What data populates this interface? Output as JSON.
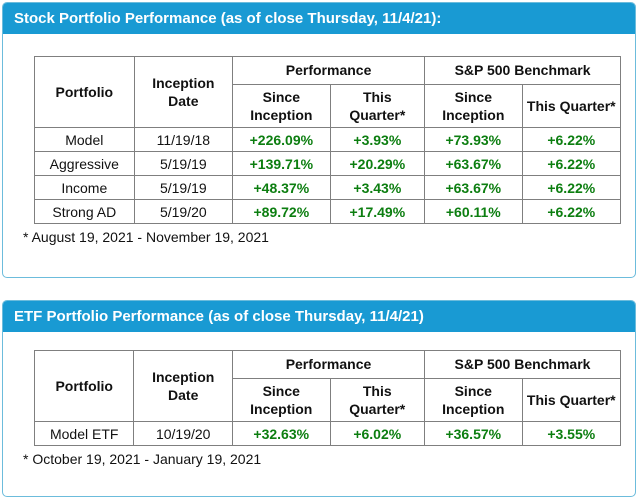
{
  "colors": {
    "header_bg": "#199ad3",
    "header_text": "#ffffff",
    "card_border": "#6cbcdc",
    "table_border": "#7f7f7f",
    "positive_value": "#0c7e10",
    "text": "#111111"
  },
  "sections": [
    {
      "title": "Stock Portfolio Performance (as of close Thursday, 11/4/21):",
      "headers": {
        "portfolio": "Portfolio",
        "inception_date": "Inception Date",
        "performance": "Performance",
        "benchmark": "S&P 500 Benchmark",
        "since_inception": "Since Inception",
        "this_quarter": "This Quarter*"
      },
      "rows": [
        {
          "portfolio": "Model",
          "inception_date": "11/19/18",
          "perf_since_inception": "+226.09%",
          "perf_this_quarter": "+3.93%",
          "bench_since_inception": "+73.93%",
          "bench_this_quarter": "+6.22%"
        },
        {
          "portfolio": "Aggressive",
          "inception_date": "5/19/19",
          "perf_since_inception": "+139.71%",
          "perf_this_quarter": "+20.29%",
          "bench_since_inception": "+63.67%",
          "bench_this_quarter": "+6.22%"
        },
        {
          "portfolio": "Income",
          "inception_date": "5/19/19",
          "perf_since_inception": "+48.37%",
          "perf_this_quarter": "+3.43%",
          "bench_since_inception": "+63.67%",
          "bench_this_quarter": "+6.22%"
        },
        {
          "portfolio": "Strong AD",
          "inception_date": "5/19/20",
          "perf_since_inception": "+89.72%",
          "perf_this_quarter": "+17.49%",
          "bench_since_inception": "+60.11%",
          "bench_this_quarter": "+6.22%"
        }
      ],
      "footnote": "* August 19, 2021 - November 19, 2021"
    },
    {
      "title": "ETF Portfolio Performance (as of close Thursday, 11/4/21)",
      "headers": {
        "portfolio": "Portfolio",
        "inception_date": "Inception Date",
        "performance": "Performance",
        "benchmark": "S&P 500 Benchmark",
        "since_inception": "Since Inception",
        "this_quarter": "This Quarter*"
      },
      "rows": [
        {
          "portfolio": "Model ETF",
          "inception_date": "10/19/20",
          "perf_since_inception": "+32.63%",
          "perf_this_quarter": "+6.02%",
          "bench_since_inception": "+36.57%",
          "bench_this_quarter": "+3.55%"
        }
      ],
      "footnote": "* October 19, 2021 - January 19, 2021"
    }
  ]
}
